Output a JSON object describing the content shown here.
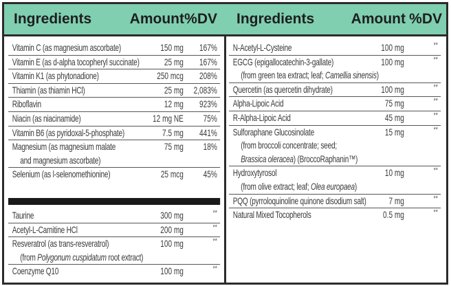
{
  "header": {
    "left": {
      "ingredients": "Ingredients",
      "amount": "Amount",
      "dv": "%DV"
    },
    "right": {
      "ingredients": "Ingredients",
      "amount": "Amount",
      "dv": "%DV"
    }
  },
  "colors": {
    "header_bg": "#7fcfb0",
    "border": "#2b2b2b"
  },
  "left_vitamins": [
    {
      "name": "Vitamin C (as magnesium ascorbate)",
      "amount": "150 mg",
      "dv": "167%"
    },
    {
      "name": "Vitamin E (as d-alpha tocopheryl succinate)",
      "amount": "25 mg",
      "dv": "167%"
    },
    {
      "name": "Vitamin K1 (as phytonadione)",
      "amount": "250 mcg",
      "dv": "208%"
    },
    {
      "name": "Thiamin (as thiamin HCl)",
      "amount": "25 mg",
      "dv": "2,083%"
    },
    {
      "name": "Riboflavin",
      "amount": "12 mg",
      "dv": "923%"
    },
    {
      "name": "Niacin (as niacinamide)",
      "amount": "12 mg NE",
      "dv": "75%"
    },
    {
      "name": "Vitamin B6 (as pyridoxal-5-phosphate)",
      "amount": "7.5 mg",
      "dv": "441%"
    },
    {
      "name": "Magnesium (as magnesium malate",
      "sub": "and magnesium ascorbate)",
      "amount": "75 mg",
      "dv": "18%"
    },
    {
      "name": "Selenium (as l-selenomethionine)",
      "amount": "25 mcg",
      "dv": "45%"
    }
  ],
  "left_others": [
    {
      "name": "Taurine",
      "amount": "300 mg",
      "dv": "**"
    },
    {
      "name": "Acetyl-L-Carnitine HCl",
      "amount": "200 mg",
      "dv": "**"
    },
    {
      "name": "Resveratrol (as trans-resveratrol)",
      "sub_pre": "(from ",
      "sub_italic": "Polygonum cuspidatum",
      "sub_post": " root extract)",
      "amount": "100 mg",
      "dv": "**"
    },
    {
      "name": "Coenzyme Q10",
      "amount": "100 mg",
      "dv": "**"
    }
  ],
  "right_items": [
    {
      "name": "N-Acetyl-L-Cysteine",
      "amount": "100 mg",
      "dv": "**"
    },
    {
      "name": "EGCG (epigallocatechin-3-gallate)",
      "sub_pre": "(from green tea extract; leaf; ",
      "sub_italic": "Camellia sinensis",
      "sub_post": ")",
      "amount": "100 mg",
      "dv": "**"
    },
    {
      "name": "Quercetin (as quercetin dihydrate)",
      "amount": "100 mg",
      "dv": "**"
    },
    {
      "name": "Alpha-Lipoic Acid",
      "amount": "75 mg",
      "dv": "**"
    },
    {
      "name": "R-Alpha-Lipoic Acid",
      "amount": "45 mg",
      "dv": "**"
    },
    {
      "name": "Sulforaphane Glucosinolate",
      "sub_pre": "(from broccoli concentrate; seed;",
      "sub2_italic": "Brassica oleracea",
      "sub2_post": ") (BroccoRaphanin™)",
      "amount": "15 mg",
      "dv": "**"
    },
    {
      "name": "Hydroxytyrosol",
      "sub_pre": "(from olive extract; leaf; ",
      "sub_italic": "Olea europaea",
      "sub_post": ")",
      "amount": "10 mg",
      "dv": "**"
    },
    {
      "name": "PQQ (pyrroloquinoline quinone disodium salt)",
      "amount": "7 mg",
      "dv": "**"
    },
    {
      "name": "Natural Mixed Tocopherols",
      "amount": "0.5 mg",
      "dv": "**"
    }
  ]
}
